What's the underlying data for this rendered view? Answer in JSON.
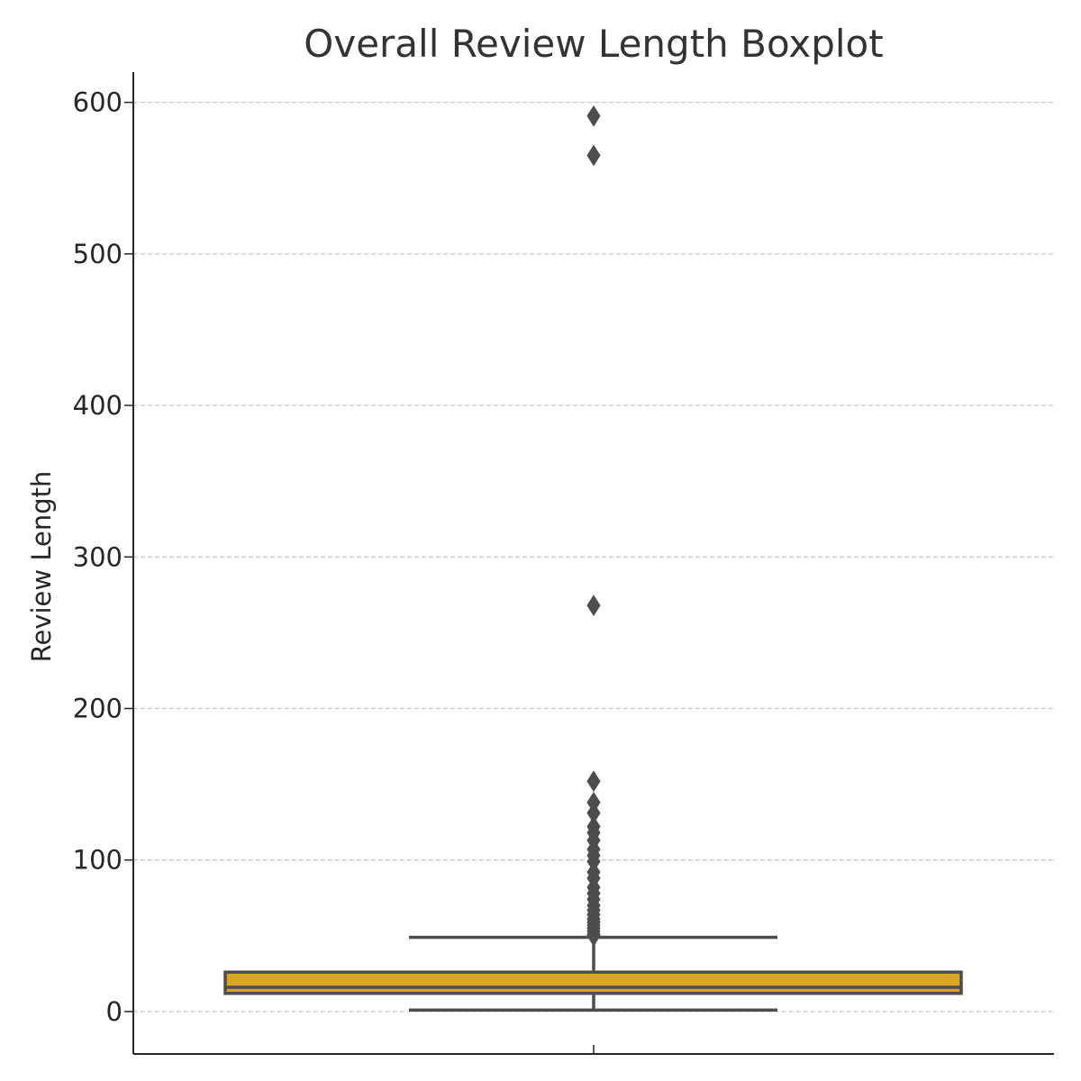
{
  "chart_data": {
    "type": "boxplot",
    "title": "Overall Review Length Boxplot",
    "xlabel": "",
    "ylabel": "Review Length",
    "ylim": [
      -28,
      620
    ],
    "yticks": [
      0,
      100,
      200,
      300,
      400,
      500,
      600
    ],
    "ytick_labels": [
      "0",
      "100",
      "200",
      "300",
      "400",
      "500",
      "600"
    ],
    "grid": true,
    "grid_axis": "y",
    "box": {
      "whisker_low": 1,
      "q1": 12,
      "median": 16,
      "q3": 26,
      "whisker_high": 49,
      "outliers": [
        591,
        565,
        268,
        152,
        138,
        131,
        122,
        118,
        113,
        107,
        103,
        99,
        92,
        88,
        82,
        78,
        74,
        70,
        67,
        64,
        61,
        59,
        57,
        55,
        53,
        51,
        50
      ]
    },
    "colors": {
      "box_fill": "#DAA520",
      "line": "#4d4d4d",
      "grid": "#c8c8c8",
      "axis": "#262626",
      "title": "#333333"
    }
  }
}
